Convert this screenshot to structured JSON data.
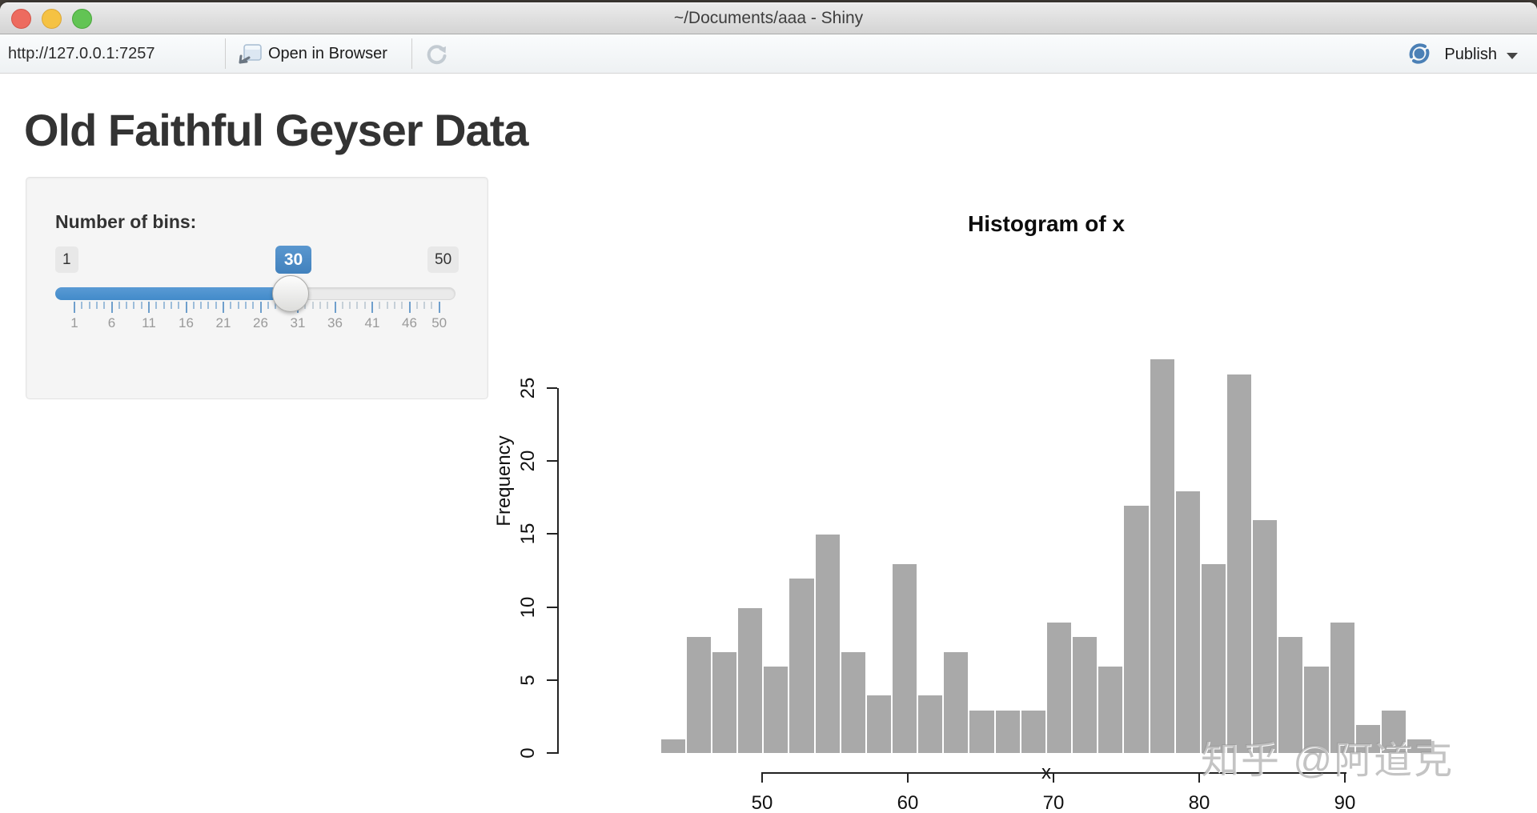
{
  "window": {
    "title": "~/Documents/aaa - Shiny"
  },
  "toolbar": {
    "url": "http://127.0.0.1:7257",
    "open_in_browser_label": "Open in Browser",
    "publish_label": "Publish"
  },
  "page": {
    "heading": "Old Faithful Geyser Data"
  },
  "sidebar": {
    "bins_label": "Number of bins:",
    "slider": {
      "min_label": "1",
      "max_label": "50",
      "value_label": "30",
      "min": 1,
      "max": 50,
      "value": 30,
      "grid_numbers": [
        1,
        6,
        11,
        16,
        21,
        26,
        31,
        36,
        41,
        46,
        50
      ],
      "accent_color": "#428bca"
    }
  },
  "chart_data": {
    "type": "bar",
    "title": "Histogram of x",
    "xlabel": "x",
    "ylabel": "Frequency",
    "bin_start": 43,
    "bin_end": 96,
    "bin_count": 30,
    "values": [
      1,
      8,
      7,
      10,
      6,
      12,
      15,
      7,
      4,
      13,
      4,
      7,
      3,
      3,
      3,
      9,
      8,
      6,
      17,
      27,
      18,
      13,
      26,
      16,
      8,
      6,
      9,
      2,
      3,
      1
    ],
    "x_ticks": [
      50,
      60,
      70,
      80,
      90
    ],
    "y_ticks": [
      0,
      5,
      10,
      15,
      20,
      25
    ],
    "ylim": [
      0,
      27
    ],
    "grid": false,
    "bar_color": "#a9a9a9",
    "bar_border_color": "#ffffff"
  },
  "watermark": {
    "text": "知乎 @阿道克"
  }
}
